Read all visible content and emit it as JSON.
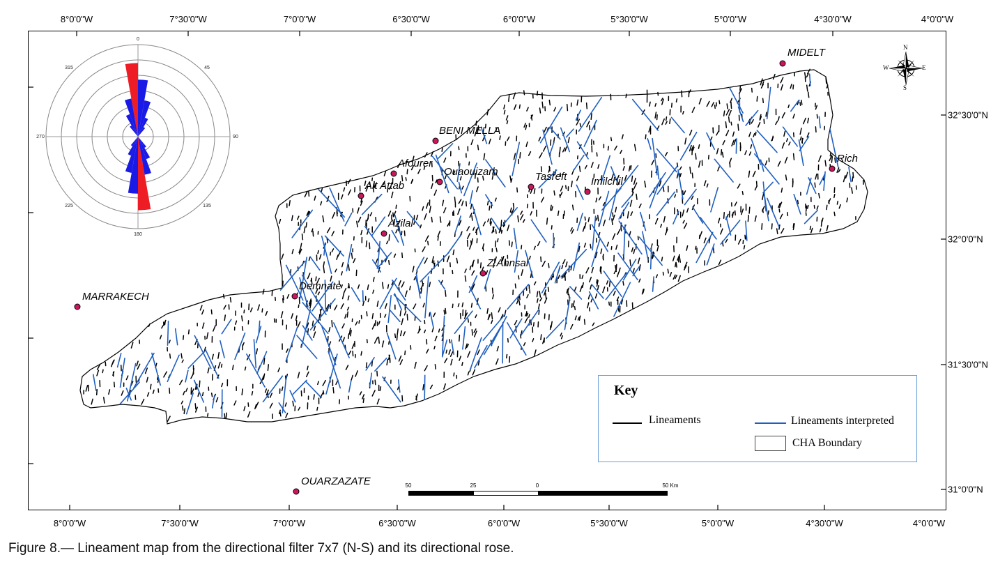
{
  "axes": {
    "top_longitudes": [
      "8°0'0\"W",
      "7°30'0\"W",
      "7°0'0\"W",
      "6°30'0\"W",
      "6°0'0\"W",
      "5°30'0\"W",
      "5°0'0\"W",
      "4°30'0\"W",
      "4°0'0\"W"
    ],
    "bottom_longitudes": [
      "8°0'0\"W",
      "7°30'0\"W",
      "7°0'0\"W",
      "6°30'0\"W",
      "6°0'0\"W",
      "5°30'0\"W",
      "5°0'0\"W",
      "4°30'0\"W",
      "4°0'0\"W"
    ],
    "right_latitudes": [
      "32°30'0\"N",
      "32°0'0\"N",
      "31°30'0\"N",
      "31°0'0\"N"
    ]
  },
  "cities": [
    {
      "name": "MIDELT"
    },
    {
      "name": "BENI MELLA"
    },
    {
      "name": "Afourer"
    },
    {
      "name": "Ouaouizarh"
    },
    {
      "name": "Tasreft"
    },
    {
      "name": "Imilchil"
    },
    {
      "name": "Rich"
    },
    {
      "name": "Ait Attab"
    },
    {
      "name": "Azilal"
    },
    {
      "name": "Z.Ahnsal"
    },
    {
      "name": "Demnate"
    },
    {
      "name": "MARRAKECH"
    },
    {
      "name": "OUARZAZATE"
    }
  ],
  "compass": {
    "north": "N",
    "south": "S",
    "east": "E",
    "west": "W"
  },
  "rose": {
    "angle_labels": [
      "0",
      "45",
      "90",
      "135",
      "180",
      "225",
      "270",
      "315"
    ],
    "petal_colors": {
      "dominant": "#ee1c24",
      "secondary": "#1a1ae6"
    }
  },
  "scale_bar": {
    "labels": [
      "50",
      "25",
      "0",
      "50 Km"
    ]
  },
  "key": {
    "title": "Key",
    "items": [
      {
        "label": "Lineaments",
        "color": "#000000"
      },
      {
        "label": "Lineaments interpreted",
        "color": "#1f5fbf"
      },
      {
        "label": "CHA Boundary",
        "color": "#ffffff"
      }
    ]
  },
  "caption": "Figure 8.— Lineament map from the directional filter 7x7 (N-S) and its directional rose."
}
